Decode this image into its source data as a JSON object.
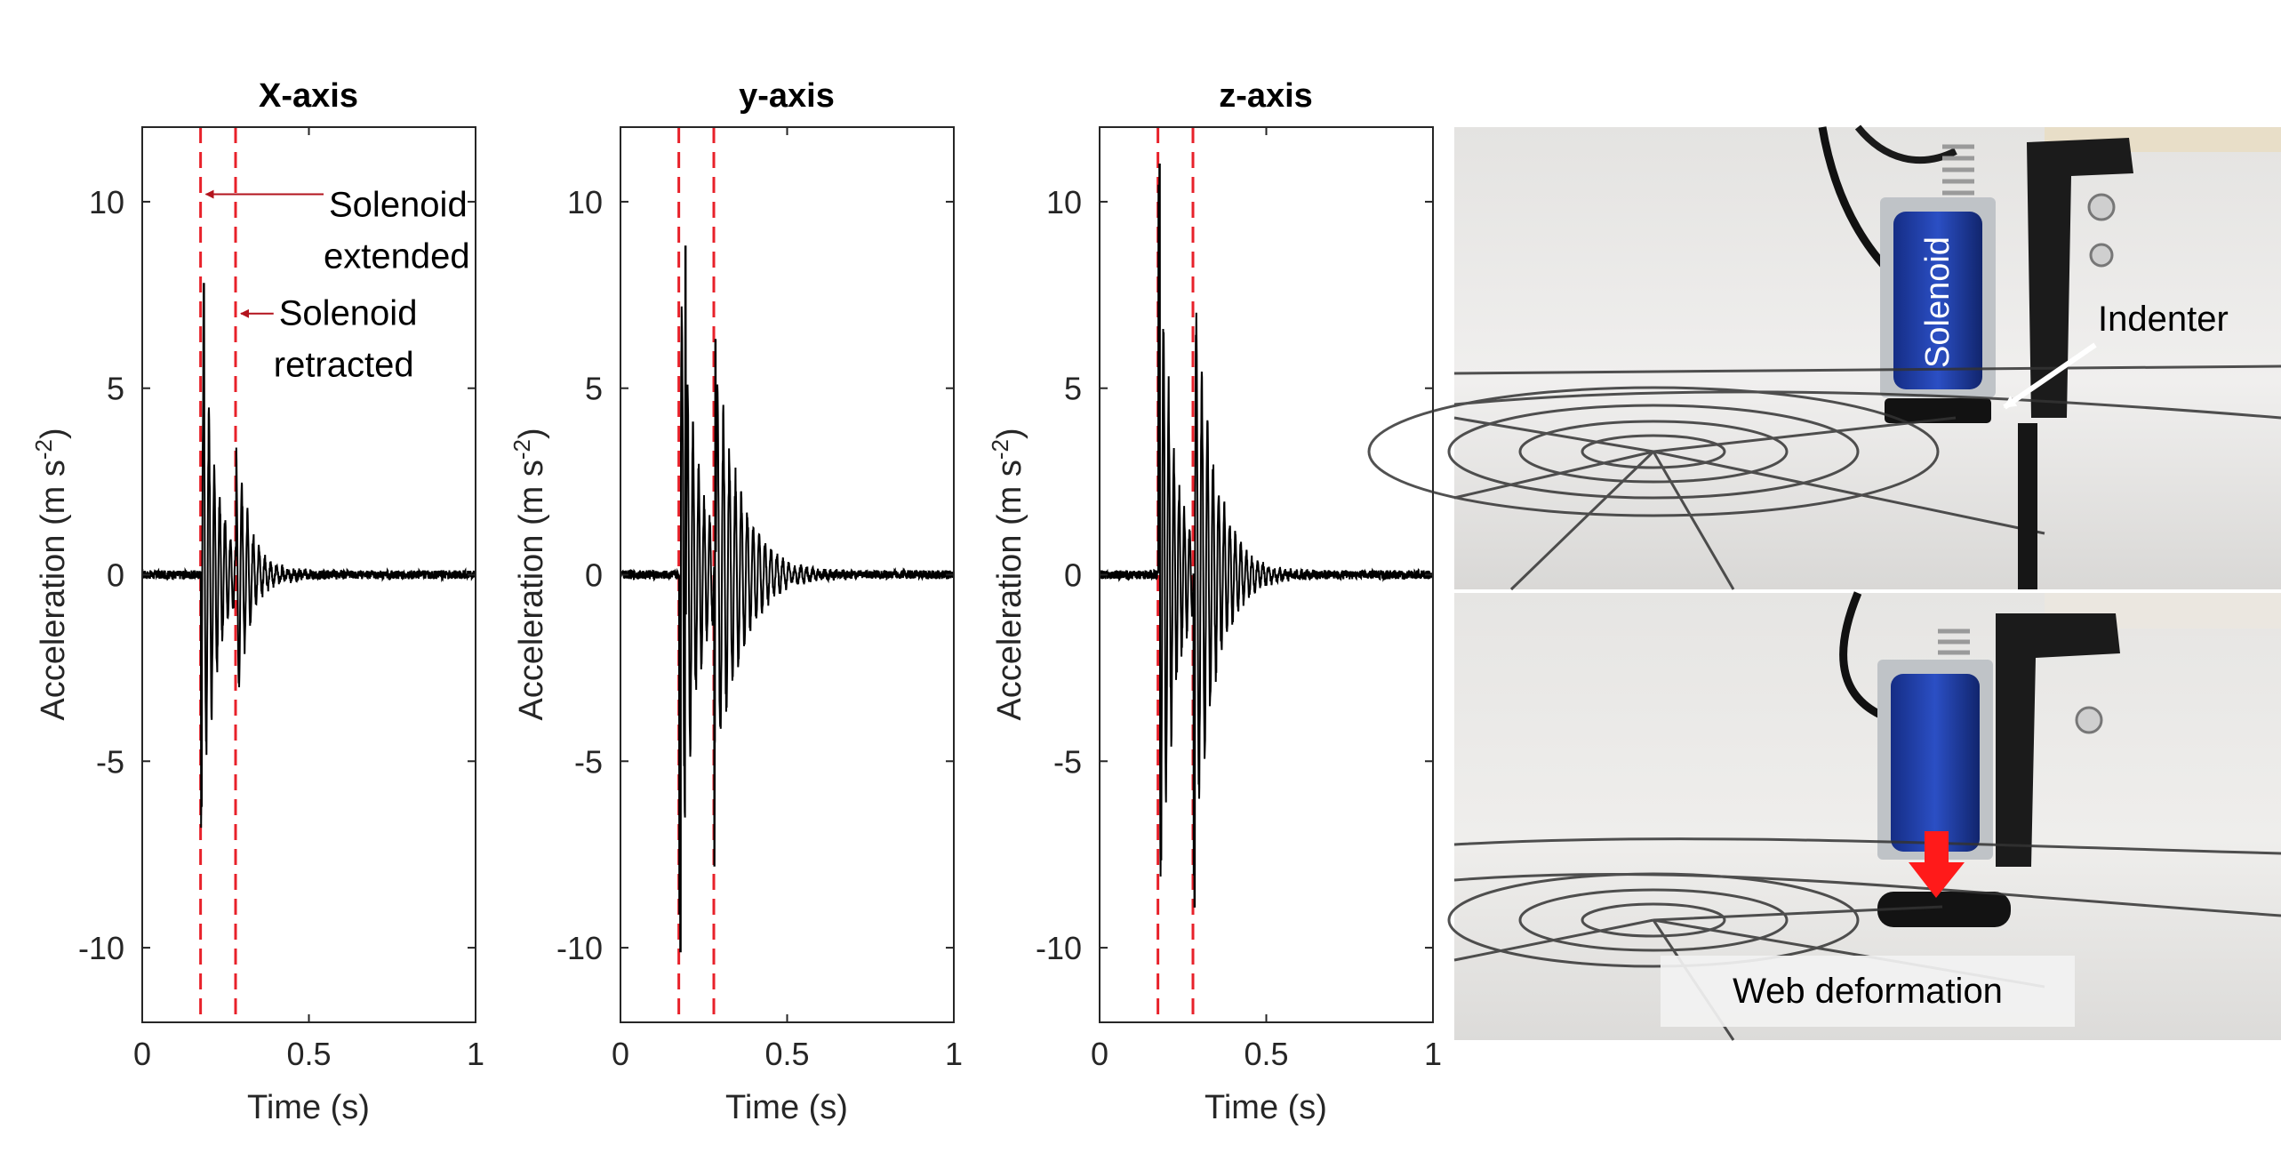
{
  "chart_data": [
    {
      "type": "line",
      "title": "X-axis",
      "xlabel": "Time (s)",
      "ylabel": "Acceleration (m s",
      "ylabel_sup": "-2",
      "ylabel_end": ")",
      "xlim": [
        0,
        1
      ],
      "ylim": [
        -12,
        12
      ],
      "xticks": [
        0,
        0.5,
        1
      ],
      "xtick_labels": [
        "0",
        "0.5",
        "1"
      ],
      "yticks": [
        -10,
        -5,
        0,
        5,
        10
      ],
      "ytick_labels": [
        "-10",
        "-5",
        "0",
        "5",
        "10"
      ],
      "grid": false,
      "markers": [
        {
          "x": 0.175,
          "color": "#e8212a",
          "style": "dashed"
        },
        {
          "x": 0.28,
          "color": "#e8212a",
          "style": "dashed"
        }
      ],
      "annotations": [
        {
          "lines": [
            "Solenoid",
            "extended"
          ],
          "arrow_to_x": 0.175,
          "arrow_color": "#b3131d"
        },
        {
          "lines": [
            "Solenoid",
            "retracted"
          ],
          "arrow_to_x": 0.28,
          "arrow_color": "#b3131d"
        }
      ],
      "signal": {
        "color": "#000000",
        "noise": 0.12,
        "bursts": [
          {
            "t0": 0.176,
            "amp": 8.0,
            "decay": 0.045,
            "freq": 62,
            "sign": -1
          },
          {
            "t0": 0.282,
            "amp": 3.2,
            "decay": 0.05,
            "freq": 58,
            "sign": 1
          }
        ],
        "peaks": [
          {
            "x": 0.185,
            "y": 7.8
          },
          {
            "x": 0.178,
            "y": -6.2
          }
        ]
      }
    },
    {
      "type": "line",
      "title": "y-axis",
      "xlabel": "Time (s)",
      "ylabel": "Acceleration (m s",
      "ylabel_sup": "-2",
      "ylabel_end": ")",
      "xlim": [
        0,
        1
      ],
      "ylim": [
        -12,
        12
      ],
      "xticks": [
        0,
        0.5,
        1
      ],
      "xtick_labels": [
        "0",
        "0.5",
        "1"
      ],
      "yticks": [
        -10,
        -5,
        0,
        5,
        10
      ],
      "ytick_labels": [
        "-10",
        "-5",
        "0",
        "5",
        "10"
      ],
      "grid": false,
      "markers": [
        {
          "x": 0.175,
          "color": "#e8212a",
          "style": "dashed"
        },
        {
          "x": 0.28,
          "color": "#e8212a",
          "style": "dashed"
        }
      ],
      "signal": {
        "color": "#000000",
        "noise": 0.12,
        "bursts": [
          {
            "t0": 0.176,
            "amp": 10.0,
            "decay": 0.05,
            "freq": 60,
            "sign": -1
          },
          {
            "t0": 0.282,
            "amp": 7.8,
            "decay": 0.07,
            "freq": 56,
            "sign": -1
          }
        ],
        "peaks": [
          {
            "x": 0.195,
            "y": 8.8
          },
          {
            "x": 0.18,
            "y": -10.1
          },
          {
            "x": 0.285,
            "y": 6.3
          },
          {
            "x": 0.282,
            "y": -7.8
          }
        ]
      }
    },
    {
      "type": "line",
      "title": "z-axis",
      "xlabel": "Time (s)",
      "ylabel": "Acceleration (m s",
      "ylabel_sup": "-2",
      "ylabel_end": ")",
      "xlim": [
        0,
        1
      ],
      "ylim": [
        -12,
        12
      ],
      "xticks": [
        0,
        0.5,
        1
      ],
      "xtick_labels": [
        "0",
        "0.5",
        "1"
      ],
      "yticks": [
        -10,
        -5,
        0,
        5,
        10
      ],
      "ytick_labels": [
        "-10",
        "-5",
        "0",
        "5",
        "10"
      ],
      "grid": false,
      "markers": [
        {
          "x": 0.175,
          "color": "#e8212a",
          "style": "dashed"
        },
        {
          "x": 0.28,
          "color": "#e8212a",
          "style": "dashed"
        }
      ],
      "signal": {
        "color": "#000000",
        "noise": 0.12,
        "bursts": [
          {
            "t0": 0.176,
            "amp": 11.0,
            "decay": 0.045,
            "freq": 64,
            "sign": 1
          },
          {
            "t0": 0.282,
            "amp": 9.5,
            "decay": 0.06,
            "freq": 60,
            "sign": -1
          }
        ],
        "peaks": [
          {
            "x": 0.18,
            "y": 11.0
          },
          {
            "x": 0.285,
            "y": 9.5
          },
          {
            "x": 0.285,
            "y": -8.9
          }
        ]
      }
    }
  ],
  "photos": {
    "top": {
      "labels": [
        "Solenoid",
        "Indenter"
      ]
    },
    "bottom": {
      "labels": [
        "Web deformation"
      ]
    }
  },
  "colors": {
    "marker_red": "#e8212a",
    "annotation_arrow": "#b3131d",
    "deformation_arrow": "#ff1a1a",
    "solenoid_blue": "#1f3fa8"
  }
}
